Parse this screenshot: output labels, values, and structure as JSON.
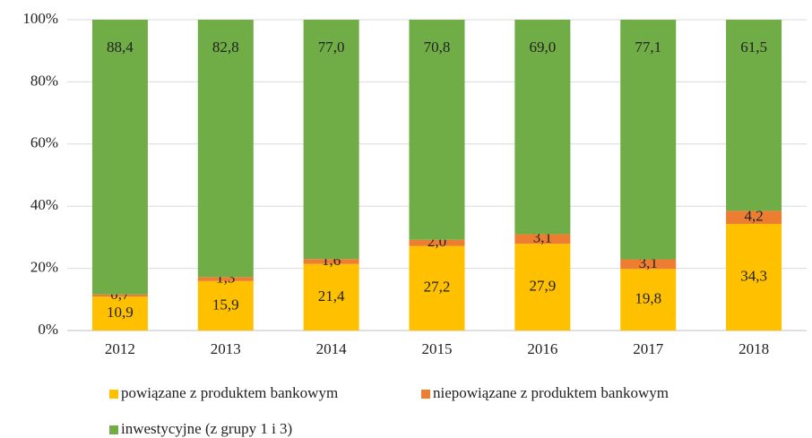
{
  "chart_data": {
    "type": "stacked_bar",
    "categories": [
      "2012",
      "2013",
      "2014",
      "2015",
      "2016",
      "2017",
      "2018"
    ],
    "series": [
      {
        "name": "powiązane z produktem bankowym",
        "color": "#FFC000",
        "values": [
          10.9,
          15.9,
          21.4,
          27.2,
          27.9,
          19.8,
          34.3
        ],
        "value_labels": [
          "10,9",
          "15,9",
          "21,4",
          "27,2",
          "27,9",
          "19,8",
          "34,3"
        ]
      },
      {
        "name": "niepowiązane z produktem bankowym",
        "color": "#ED7D31",
        "values": [
          0.7,
          1.3,
          1.6,
          2.0,
          3.1,
          3.1,
          4.2
        ],
        "value_labels": [
          "0,7",
          "1,3",
          "1,6",
          "2,0",
          "3,1",
          "3,1",
          "4,2"
        ]
      },
      {
        "name": "inwestycyjne (z grupy 1 i 3)",
        "color": "#70AD47",
        "values": [
          88.4,
          82.8,
          77.0,
          70.8,
          69.0,
          77.1,
          61.5
        ],
        "value_labels": [
          "88,4",
          "82,8",
          "77,0",
          "70,8",
          "69,0",
          "77,1",
          "61,5"
        ]
      }
    ],
    "ylim": [
      0,
      100
    ],
    "yticks": [
      {
        "value": 0,
        "label": "0%"
      },
      {
        "value": 20,
        "label": "20%"
      },
      {
        "value": 40,
        "label": "40%"
      },
      {
        "value": 60,
        "label": "60%"
      },
      {
        "value": 80,
        "label": "80%"
      },
      {
        "value": 100,
        "label": "100%"
      }
    ],
    "grid": true
  }
}
